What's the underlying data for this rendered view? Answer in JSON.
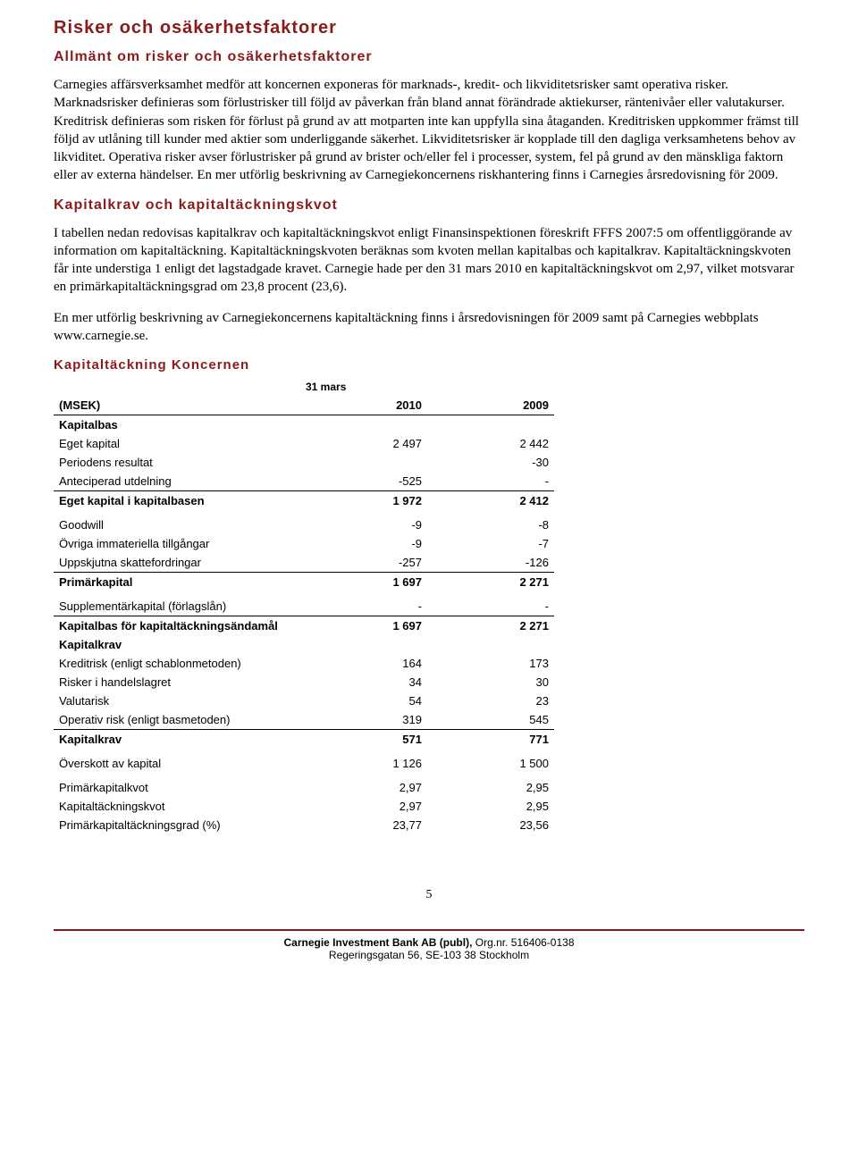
{
  "heading_main": "Risker och osäkerhetsfaktorer",
  "heading_sub1": "Allmänt om risker och osäkerhetsfaktorer",
  "para1": "Carnegies affärsverksamhet medför att koncernen exponeras för marknads-, kredit- och likviditetsrisker samt operativa risker. Marknadsrisker definieras som förlustrisker till följd av påverkan från bland annat förändrade aktiekurser, räntenivåer eller valutakurser. Kreditrisk definieras som risken för förlust på grund av att motparten inte kan uppfylla sina åtaganden. Kreditrisken uppkommer främst till följd av utlåning till kunder med aktier som underliggande säkerhet. Likviditetsrisker är kopplade till den dagliga verksamhetens behov av likviditet. Operativa risker avser förlustrisker på grund av brister och/eller fel i processer, system, fel på grund av den mänskliga faktorn eller av externa händelser. En mer utförlig beskrivning av Carnegiekoncernens riskhantering finns i Carnegies årsredovisning för 2009.",
  "heading_sub2": "Kapitalkrav och kapitaltäckningskvot",
  "para2": "I tabellen nedan redovisas kapitalkrav och kapitaltäckningskvot enligt Finansinspektionen föreskrift FFFS 2007:5 om offentliggörande av information om kapitaltäckning. Kapitaltäckningskvoten beräknas som kvoten mellan kapitalbas och kapitalkrav. Kapitaltäckningskvoten får inte understiga 1 enligt det lagstadgade kravet. Carnegie hade per den 31 mars 2010 en kapitaltäckningskvot om 2,97, vilket motsvarar en primärkapitaltäckningsgrad om 23,8 procent (23,6).",
  "para3": "En mer utförlig beskrivning av Carnegiekoncernens kapitaltäckning finns i årsredovisningen för 2009 samt på Carnegies webbplats www.carnegie.se.",
  "table": {
    "title": "Kapitaltäckning Koncernen",
    "period_label": "31 mars",
    "col_label": "(MSEK)",
    "col1": "2010",
    "col2": "2009",
    "section1": "Kapitalbas",
    "rows1": [
      {
        "label": "Eget kapital",
        "v1": "2 497",
        "v2": "2 442",
        "underline": false
      },
      {
        "label": "Periodens resultat",
        "v1": "",
        "v2": "-30",
        "underline": false
      },
      {
        "label": "Anteciperad utdelning",
        "v1": "-525",
        "v2": "-",
        "underline": true
      }
    ],
    "subtotal1": {
      "label": "Eget kapital i kapitalbasen",
      "v1": "1 972",
      "v2": "2 412"
    },
    "rows2": [
      {
        "label": "Goodwill",
        "v1": "-9",
        "v2": "-8",
        "underline": false
      },
      {
        "label": "Övriga immateriella tillgångar",
        "v1": "-9",
        "v2": "-7",
        "underline": false
      },
      {
        "label": "Uppskjutna skattefordringar",
        "v1": "-257",
        "v2": "-126",
        "underline": true
      }
    ],
    "subtotal2": {
      "label": "Primärkapital",
      "v1": "1 697",
      "v2": "2 271"
    },
    "rows3": [
      {
        "label": "Supplementärkapital (förlagslån)",
        "v1": "-",
        "v2": "-",
        "underline": true
      }
    ],
    "subtotal3": {
      "label": "Kapitalbas för kapitaltäckningsändamål",
      "v1": "1 697",
      "v2": "2 271"
    },
    "section2": "Kapitalkrav",
    "rows4": [
      {
        "label": "Kreditrisk (enligt schablonmetoden)",
        "v1": "164",
        "v2": "173",
        "underline": false
      },
      {
        "label": "Risker i handelslagret",
        "v1": "34",
        "v2": "30",
        "underline": false
      },
      {
        "label": "Valutarisk",
        "v1": "54",
        "v2": "23",
        "underline": false
      },
      {
        "label": "Operativ risk (enligt basmetoden)",
        "v1": "319",
        "v2": "545",
        "underline": true
      }
    ],
    "subtotal4": {
      "label": "Kapitalkrav",
      "v1": "571",
      "v2": "771"
    },
    "rows5": [
      {
        "label": "Överskott av kapital",
        "v1": "1 126",
        "v2": "1 500"
      }
    ],
    "rows6": [
      {
        "label": "Primärkapitalkvot",
        "v1": "2,97",
        "v2": "2,95"
      },
      {
        "label": "Kapitaltäckningskvot",
        "v1": "2,97",
        "v2": "2,95"
      },
      {
        "label": "Primärkapitaltäckningsgrad (%)",
        "v1": "23,77",
        "v2": "23,56"
      }
    ]
  },
  "footer": {
    "page_num": "5",
    "company_bold": "Carnegie Investment Bank AB (publ),",
    "orgnr": " Org.nr. 516406-0138",
    "address": "Regeringsgatan 56, SE-103 38 Stockholm"
  }
}
